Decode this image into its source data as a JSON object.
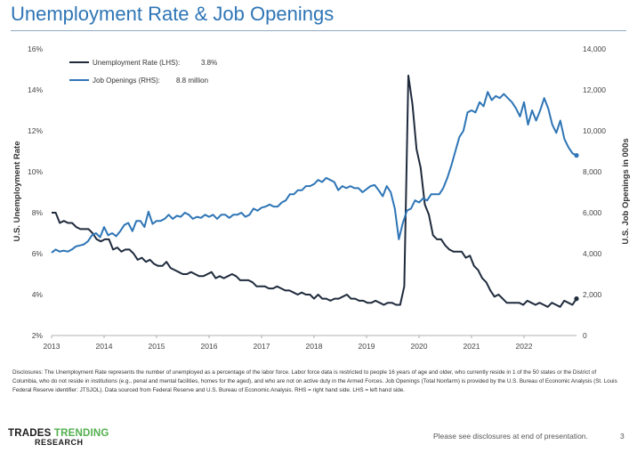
{
  "page": {
    "title": "Unemployment Rate & Job Openings"
  },
  "chart_data": {
    "type": "line",
    "x_ticks": [
      "2013",
      "2014",
      "2015",
      "2016",
      "2017",
      "2018",
      "2019",
      "2020",
      "2021",
      "2022"
    ],
    "xlim": [
      2013,
      2023
    ],
    "y_left": {
      "label": "U.S. Unemployment Rate",
      "lim": [
        2,
        16
      ],
      "ticks": [
        "2%",
        "4%",
        "6%",
        "8%",
        "10%",
        "12%",
        "14%",
        "16%"
      ]
    },
    "y_right": {
      "label": "U.S. Job Openings in 000s",
      "lim": [
        0,
        14000
      ],
      "ticks": [
        "0",
        "2,000",
        "4,000",
        "6,000",
        "8,000",
        "10,000",
        "12,000",
        "14,000"
      ]
    },
    "legend": [
      {
        "name": "Unemployment Rate (LHS):",
        "value": "3.8%"
      },
      {
        "name": "Job Openings (RHS):",
        "value": "8.8 million"
      }
    ],
    "series": [
      {
        "name": "Unemployment Rate",
        "axis": "left",
        "color": "#1f2b3d",
        "values": [
          8.0,
          8.0,
          7.5,
          7.6,
          7.5,
          7.5,
          7.3,
          7.2,
          7.2,
          7.2,
          7.0,
          6.7,
          6.6,
          6.7,
          6.7,
          6.2,
          6.3,
          6.1,
          6.2,
          6.2,
          6.0,
          5.7,
          5.8,
          5.6,
          5.7,
          5.5,
          5.4,
          5.4,
          5.6,
          5.3,
          5.2,
          5.1,
          5.0,
          5.0,
          5.1,
          5.0,
          4.9,
          4.9,
          5.0,
          5.1,
          4.8,
          4.9,
          4.8,
          4.9,
          5.0,
          4.9,
          4.7,
          4.7,
          4.7,
          4.6,
          4.4,
          4.4,
          4.4,
          4.3,
          4.3,
          4.4,
          4.3,
          4.2,
          4.2,
          4.1,
          4.0,
          4.1,
          4.0,
          4.0,
          3.8,
          4.0,
          3.8,
          3.8,
          3.7,
          3.8,
          3.8,
          3.9,
          4.0,
          3.8,
          3.8,
          3.7,
          3.7,
          3.6,
          3.6,
          3.7,
          3.6,
          3.5,
          3.6,
          3.6,
          3.5,
          3.5,
          4.4,
          14.7,
          13.3,
          11.1,
          10.2,
          8.4,
          7.9,
          6.9,
          6.7,
          6.7,
          6.4,
          6.2,
          6.1,
          6.1,
          6.1,
          5.8,
          5.9,
          5.4,
          5.2,
          4.8,
          4.6,
          4.2,
          3.9,
          4.0,
          3.8,
          3.6,
          3.6,
          3.6,
          3.6,
          3.5,
          3.7,
          3.6,
          3.5,
          3.6,
          3.5,
          3.4,
          3.6,
          3.5,
          3.4,
          3.7,
          3.6,
          3.5,
          3.8
        ]
      },
      {
        "name": "Job Openings",
        "axis": "right",
        "color": "#2e75b6",
        "values": [
          4.05,
          4.2,
          4.1,
          4.15,
          4.1,
          4.2,
          4.35,
          4.4,
          4.45,
          4.6,
          4.9,
          5.0,
          4.8,
          5.3,
          4.9,
          5.0,
          4.85,
          5.1,
          5.4,
          5.5,
          5.1,
          5.6,
          5.6,
          5.3,
          6.05,
          5.45,
          5.6,
          5.6,
          5.7,
          5.9,
          5.7,
          5.85,
          5.8,
          6.0,
          5.9,
          5.7,
          5.8,
          5.75,
          5.9,
          5.8,
          5.9,
          5.7,
          5.9,
          5.9,
          5.75,
          5.9,
          5.9,
          6.0,
          5.8,
          5.9,
          6.2,
          6.1,
          6.25,
          6.3,
          6.4,
          6.3,
          6.3,
          6.5,
          6.6,
          6.9,
          6.9,
          7.1,
          7.1,
          7.3,
          7.3,
          7.4,
          7.6,
          7.5,
          7.7,
          7.6,
          7.5,
          7.1,
          7.3,
          7.2,
          7.3,
          7.2,
          7.2,
          7.0,
          7.15,
          7.3,
          7.35,
          7.1,
          6.8,
          7.3,
          7.0,
          6.2,
          4.7,
          5.5,
          6.1,
          6.2,
          6.6,
          6.5,
          6.7,
          6.6,
          6.9,
          6.9,
          6.9,
          7.2,
          7.7,
          8.3,
          9.0,
          9.7,
          10.0,
          10.9,
          11.0,
          10.9,
          11.4,
          11.2,
          11.9,
          11.5,
          11.7,
          11.6,
          11.8,
          11.6,
          11.4,
          11.1,
          10.7,
          11.4,
          10.3,
          11.0,
          10.5,
          11.0,
          11.6,
          11.1,
          10.3,
          9.9,
          10.5,
          9.6,
          9.2,
          8.9,
          8.8
        ]
      }
    ]
  },
  "disclosure": "Disclosures: The Unemployment Rate represents the number of unemployed as a percentage of the labor force. Labor force data is restricted to people 16 years of age and older, who currently reside in 1 of the 50 states or the District of Columbia, who do not reside in institutions (e.g., penal and mental facilities, homes for the aged), and who are not on active duty in the Armed Forces. Job Openings (Total Nonfarm) is provided by the U.S. Bureau of Economic Analysis (St. Louis Federal Reserve identifier: JTSJOL). Data sourced from Federal Reserve and U.S. Bureau of Economic Analysis. RHS = right hand side. LHS = left hand side.",
  "logo": {
    "word1": "TRADES",
    "word2": "TRENDING",
    "word3": "RESEARCH"
  },
  "footer": {
    "note": "Please see disclosures at end of presentation.",
    "page_number": "3"
  }
}
